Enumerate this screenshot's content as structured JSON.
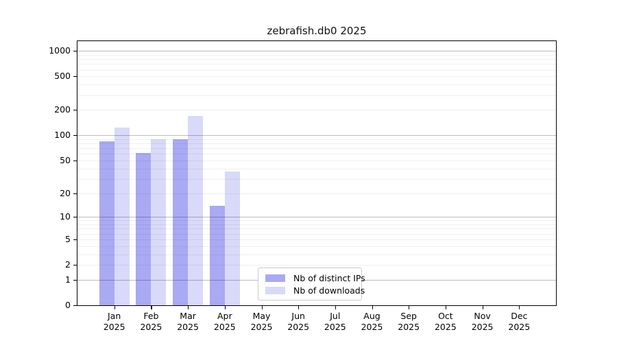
{
  "chart_data": {
    "type": "bar",
    "title": "zebrafish.db0 2025",
    "categories": [
      "Jan",
      "Feb",
      "Mar",
      "Apr",
      "May",
      "Jun",
      "Jul",
      "Aug",
      "Sep",
      "Oct",
      "Nov",
      "Dec"
    ],
    "year_label": "2025",
    "series": [
      {
        "name": "Nb of distinct IPs",
        "color": "#a9a9f4",
        "values": [
          85,
          62,
          89,
          14,
          0,
          0,
          0,
          0,
          0,
          0,
          0,
          0
        ]
      },
      {
        "name": "Nb of downloads",
        "color": "#d9d9f9",
        "values": [
          124,
          90,
          170,
          37,
          0,
          0,
          0,
          0,
          0,
          0,
          0,
          0
        ]
      }
    ],
    "xlabel": "",
    "ylabel": "",
    "y_ticks": [
      0,
      1,
      2,
      5,
      10,
      20,
      50,
      100,
      200,
      500,
      1000
    ],
    "y_scale": "log10(1+y)",
    "ylim": [
      0,
      1300
    ],
    "grid": {
      "major": true,
      "minor": true
    },
    "legend_position": "lower center-left"
  }
}
